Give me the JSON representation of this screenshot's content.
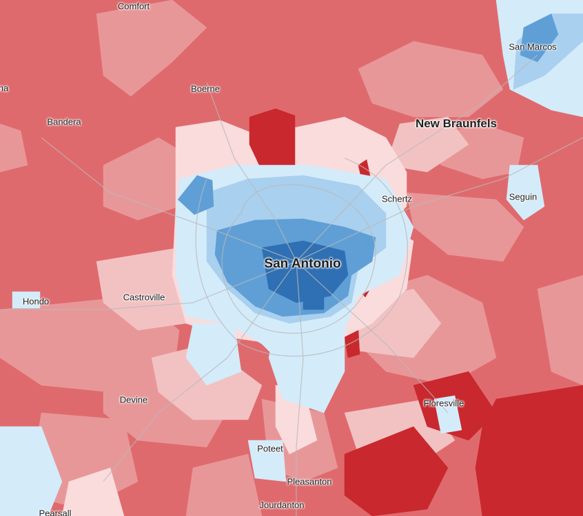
{
  "map": {
    "colors": {
      "strong_red": "#c9282e",
      "red": "#df6a6d",
      "medium_red": "#e89799",
      "light_red": "#f2c2c3",
      "pale_red": "#fadcdc",
      "pale_blue": "#d4ebfa",
      "light_blue": "#a9d0ee",
      "medium_blue": "#5f9fd6",
      "strong_blue": "#2f6fb3",
      "road": "#b9b9b9"
    },
    "places": {
      "comfort": "Comfort",
      "boerne": "Boerne",
      "bandera": "Bandera",
      "san_marcos": "San Marcos",
      "new_braunfels": "New Braunfels",
      "schertz": "Schertz",
      "seguin": "Seguin",
      "san_antonio": "San Antonio",
      "hondo": "Hondo",
      "castroville": "Castroville",
      "devine": "Devine",
      "floresville": "Floresville",
      "poteet": "Poteet",
      "pleasanton": "Pleasanton",
      "jourdanton": "Jourdanton",
      "left_edge": "na",
      "bottom_edge": "Pearsall"
    }
  }
}
